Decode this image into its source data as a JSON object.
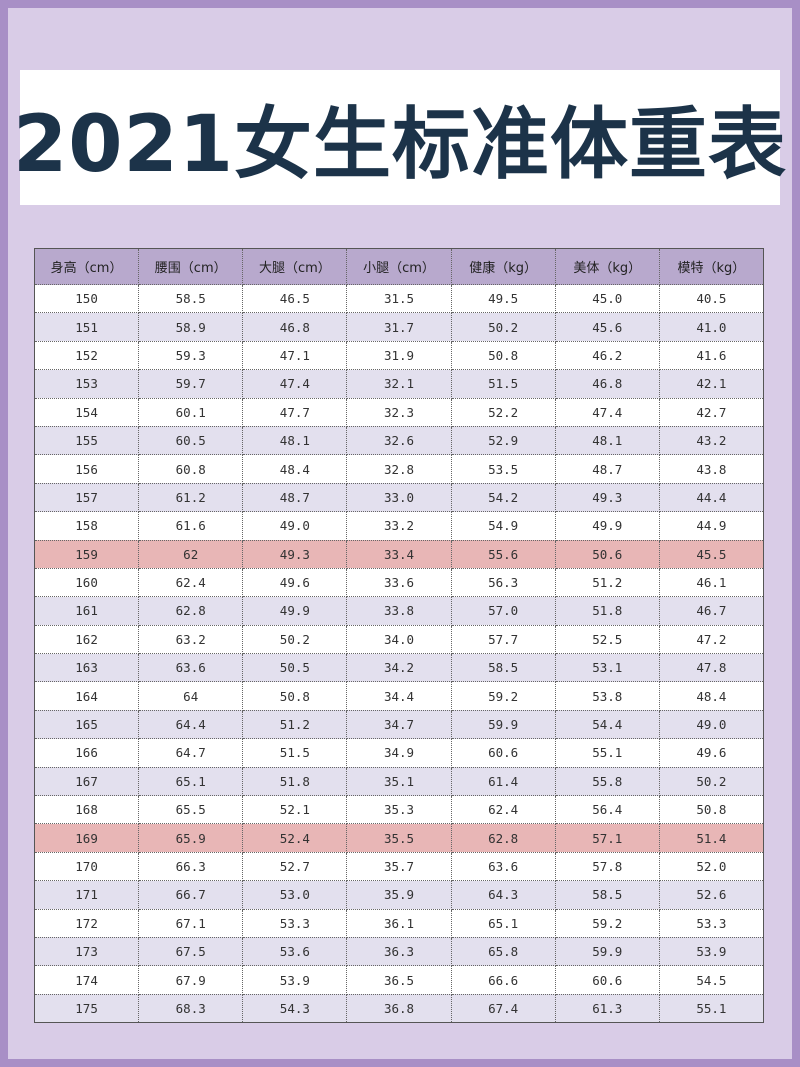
{
  "title": "2021女生标准体重表",
  "colors": {
    "background": "#d9cce7",
    "border": "#a88fc6",
    "title_text": "#1c3349",
    "header_bg": "#b8a9cd",
    "alt_row": "#e3e0ee",
    "highlight_row": "#e8b6b6"
  },
  "table": {
    "headers": [
      "身高（cm）",
      "腰围（cm）",
      "大腿（cm）",
      "小腿（cm）",
      "健康（kg）",
      "美体（kg）",
      "模特（kg）"
    ],
    "highlighted_heights": [
      "159",
      "169"
    ],
    "rows": [
      [
        "150",
        "58.5",
        "46.5",
        "31.5",
        "49.5",
        "45.0",
        "40.5"
      ],
      [
        "151",
        "58.9",
        "46.8",
        "31.7",
        "50.2",
        "45.6",
        "41.0"
      ],
      [
        "152",
        "59.3",
        "47.1",
        "31.9",
        "50.8",
        "46.2",
        "41.6"
      ],
      [
        "153",
        "59.7",
        "47.4",
        "32.1",
        "51.5",
        "46.8",
        "42.1"
      ],
      [
        "154",
        "60.1",
        "47.7",
        "32.3",
        "52.2",
        "47.4",
        "42.7"
      ],
      [
        "155",
        "60.5",
        "48.1",
        "32.6",
        "52.9",
        "48.1",
        "43.2"
      ],
      [
        "156",
        "60.8",
        "48.4",
        "32.8",
        "53.5",
        "48.7",
        "43.8"
      ],
      [
        "157",
        "61.2",
        "48.7",
        "33.0",
        "54.2",
        "49.3",
        "44.4"
      ],
      [
        "158",
        "61.6",
        "49.0",
        "33.2",
        "54.9",
        "49.9",
        "44.9"
      ],
      [
        "159",
        "62",
        "49.3",
        "33.4",
        "55.6",
        "50.6",
        "45.5"
      ],
      [
        "160",
        "62.4",
        "49.6",
        "33.6",
        "56.3",
        "51.2",
        "46.1"
      ],
      [
        "161",
        "62.8",
        "49.9",
        "33.8",
        "57.0",
        "51.8",
        "46.7"
      ],
      [
        "162",
        "63.2",
        "50.2",
        "34.0",
        "57.7",
        "52.5",
        "47.2"
      ],
      [
        "163",
        "63.6",
        "50.5",
        "34.2",
        "58.5",
        "53.1",
        "47.8"
      ],
      [
        "164",
        "64",
        "50.8",
        "34.4",
        "59.2",
        "53.8",
        "48.4"
      ],
      [
        "165",
        "64.4",
        "51.2",
        "34.7",
        "59.9",
        "54.4",
        "49.0"
      ],
      [
        "166",
        "64.7",
        "51.5",
        "34.9",
        "60.6",
        "55.1",
        "49.6"
      ],
      [
        "167",
        "65.1",
        "51.8",
        "35.1",
        "61.4",
        "55.8",
        "50.2"
      ],
      [
        "168",
        "65.5",
        "52.1",
        "35.3",
        "62.4",
        "56.4",
        "50.8"
      ],
      [
        "169",
        "65.9",
        "52.4",
        "35.5",
        "62.8",
        "57.1",
        "51.4"
      ],
      [
        "170",
        "66.3",
        "52.7",
        "35.7",
        "63.6",
        "57.8",
        "52.0"
      ],
      [
        "171",
        "66.7",
        "53.0",
        "35.9",
        "64.3",
        "58.5",
        "52.6"
      ],
      [
        "172",
        "67.1",
        "53.3",
        "36.1",
        "65.1",
        "59.2",
        "53.3"
      ],
      [
        "173",
        "67.5",
        "53.6",
        "36.3",
        "65.8",
        "59.9",
        "53.9"
      ],
      [
        "174",
        "67.9",
        "53.9",
        "36.5",
        "66.6",
        "60.6",
        "54.5"
      ],
      [
        "175",
        "68.3",
        "54.3",
        "36.8",
        "67.4",
        "61.3",
        "55.1"
      ]
    ]
  }
}
